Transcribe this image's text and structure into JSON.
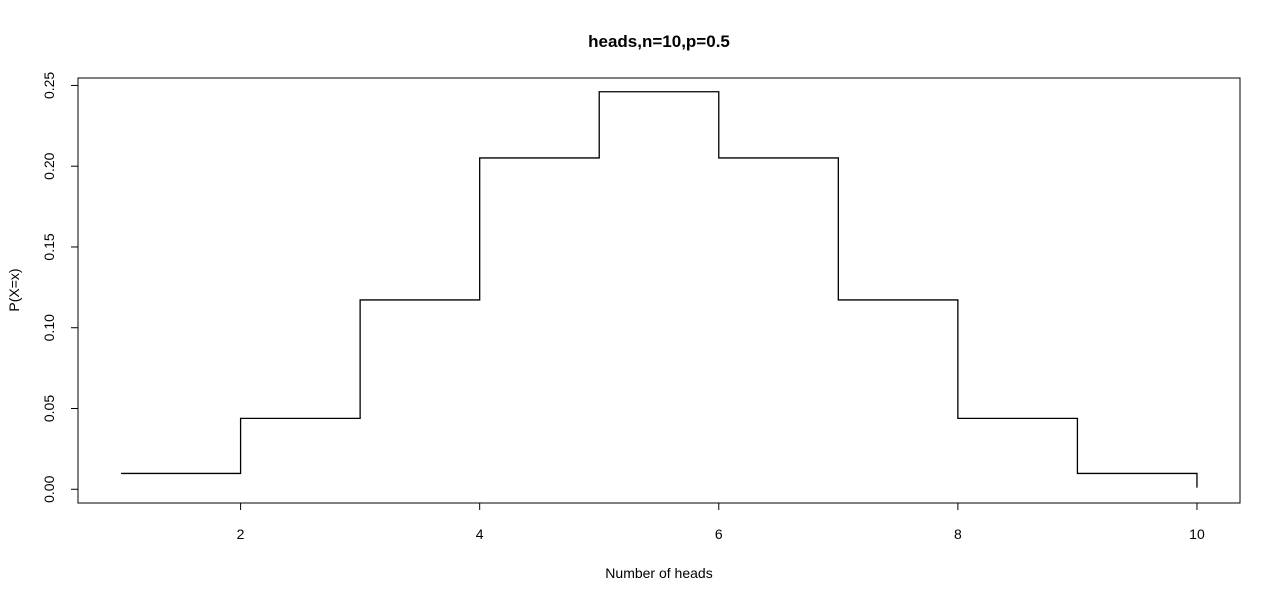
{
  "chart_data": {
    "type": "line",
    "style": "step",
    "title": "heads,n=10,p=0.5",
    "xlabel": "Number of heads",
    "ylabel": "P(X=x)",
    "x": [
      1,
      2,
      3,
      4,
      5,
      6,
      7,
      8,
      9,
      10
    ],
    "y": [
      0.0098,
      0.0439,
      0.1172,
      0.2051,
      0.2461,
      0.2051,
      0.1172,
      0.0439,
      0.0098,
      0.001
    ],
    "xlim": [
      0.64,
      10.36
    ],
    "ylim": [
      -0.0085,
      0.2546
    ],
    "xticks": [
      2,
      4,
      6,
      8,
      10
    ],
    "xtick_labels": [
      "2",
      "4",
      "6",
      "8",
      "10"
    ],
    "yticks": [
      0.0,
      0.05,
      0.1,
      0.15,
      0.2,
      0.25
    ],
    "ytick_labels": [
      "0.00",
      "0.05",
      "0.10",
      "0.15",
      "0.20",
      "0.25"
    ],
    "grid": false,
    "line_color": "#000000"
  }
}
